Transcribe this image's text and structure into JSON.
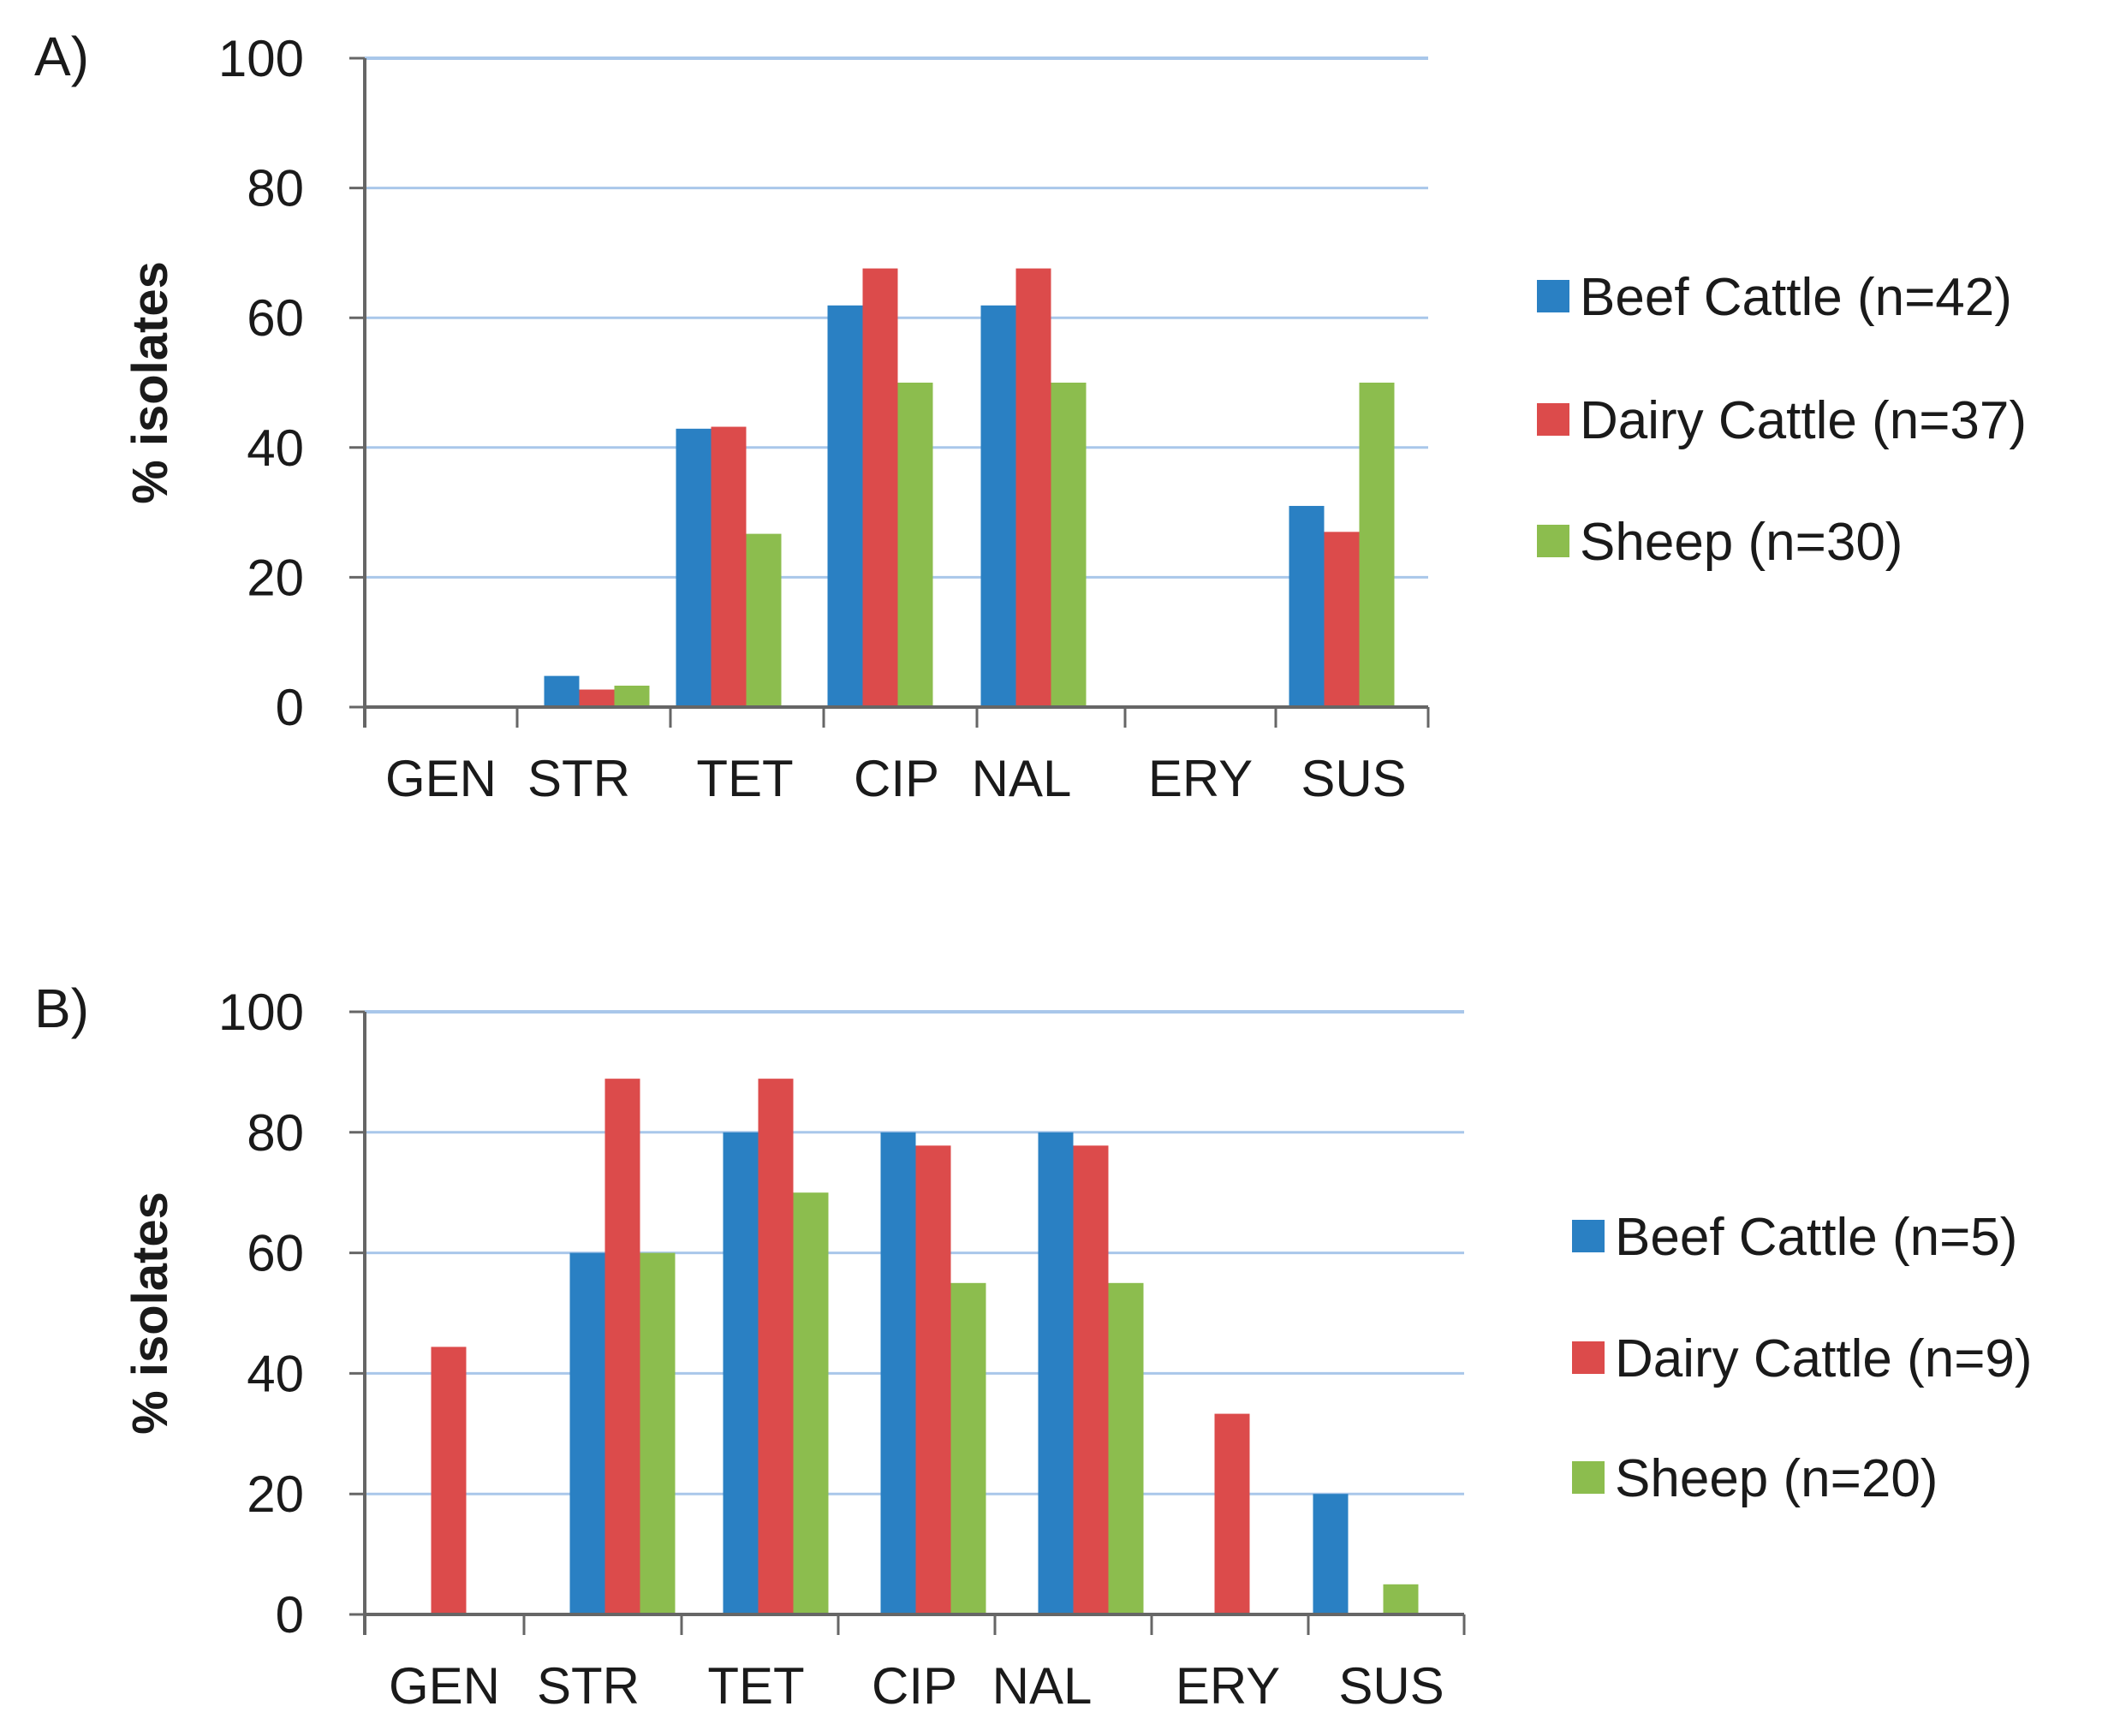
{
  "colors": {
    "beef": "#2a80c3",
    "dairy": "#dc4b4b",
    "sheep": "#8cbd4e",
    "grid": "#a9c7ea",
    "axis": "#666666"
  },
  "chart_data": [
    {
      "type": "bar",
      "panel_label": "A)",
      "ylabel": "% isolates",
      "ylim": [
        0,
        100
      ],
      "yticks": [
        "0",
        "20",
        "40",
        "60",
        "80",
        "100"
      ],
      "categories": [
        "GEN",
        "STR",
        "TET",
        "CIP",
        "NAL",
        "ERY",
        "SUS"
      ],
      "series": [
        {
          "name": "Beef Cattle (n=42)",
          "values": [
            0,
            4.8,
            42.9,
            61.9,
            61.9,
            0,
            31
          ]
        },
        {
          "name": "Dairy Cattle (n=37)",
          "values": [
            0,
            2.7,
            43.2,
            67.6,
            67.6,
            0,
            27
          ]
        },
        {
          "name": "Sheep (n=30)",
          "values": [
            0,
            3.3,
            26.7,
            50,
            50,
            0,
            50
          ]
        }
      ],
      "legend": "right"
    },
    {
      "type": "bar",
      "panel_label": "B)",
      "ylabel": "% isolates",
      "ylim": [
        0,
        100
      ],
      "yticks": [
        "0",
        "20",
        "40",
        "60",
        "80",
        "100"
      ],
      "categories": [
        "GEN",
        "STR",
        "TET",
        "CIP",
        "NAL",
        "ERY",
        "SUS"
      ],
      "series": [
        {
          "name": "Beef Cattle (n=5)",
          "values": [
            0,
            60,
            80,
            80,
            80,
            0,
            20
          ]
        },
        {
          "name": "Dairy Cattle (n=9)",
          "values": [
            44.4,
            88.9,
            88.9,
            77.8,
            77.8,
            33.3,
            0
          ]
        },
        {
          "name": "Sheep (n=20)",
          "values": [
            0,
            60,
            70,
            55,
            55,
            0,
            5
          ]
        }
      ],
      "legend": "right"
    }
  ]
}
